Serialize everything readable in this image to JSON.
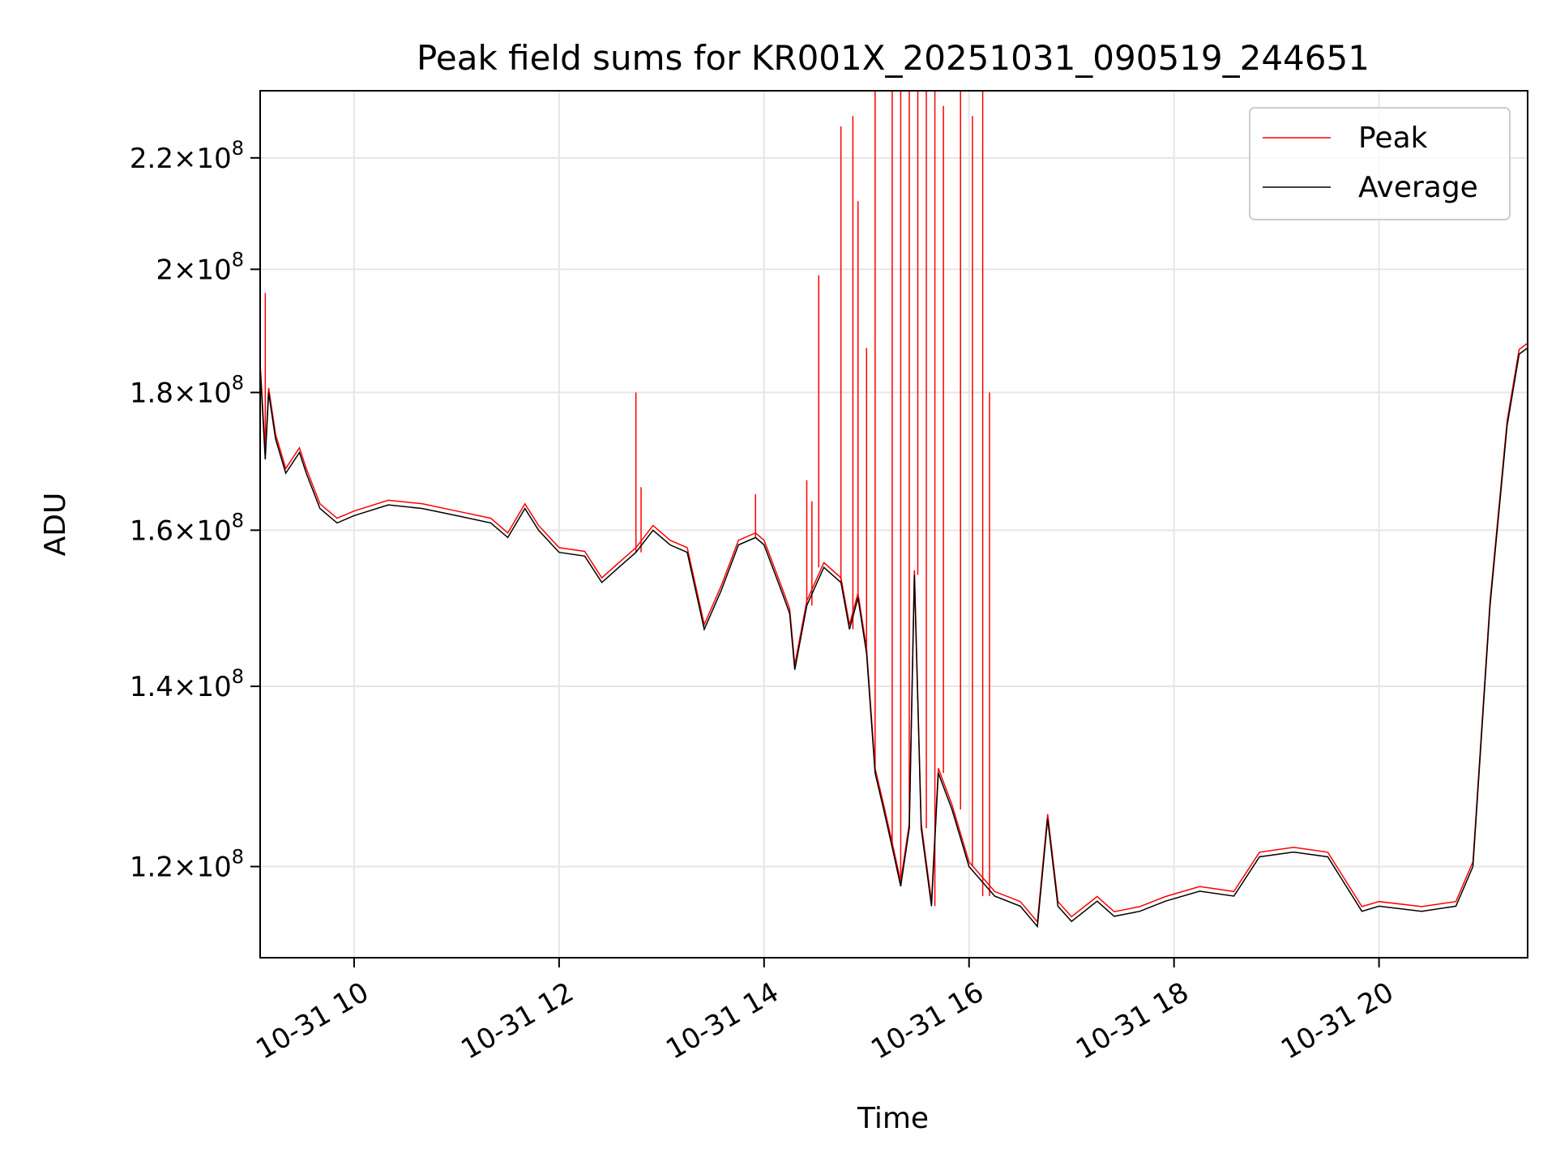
{
  "chart_data": {
    "type": "line",
    "title": "Peak field sums for KR001X_20251031_090519_244651",
    "xlabel": "Time",
    "ylabel": "ADU",
    "xlim": [
      "2025-10-31 09:05",
      "2025-10-31 21:27"
    ],
    "ylim": [
      111000000,
      233000000
    ],
    "yscale": "log",
    "grid": true,
    "legend_position": "top-right",
    "x_ticks": [
      {
        "t": "2025-10-31 10:00",
        "label": "10-31 10"
      },
      {
        "t": "2025-10-31 12:00",
        "label": "10-31 12"
      },
      {
        "t": "2025-10-31 14:00",
        "label": "10-31 14"
      },
      {
        "t": "2025-10-31 16:00",
        "label": "10-31 16"
      },
      {
        "t": "2025-10-31 18:00",
        "label": "10-31 18"
      },
      {
        "t": "2025-10-31 20:00",
        "label": "10-31 20"
      }
    ],
    "y_ticks": [
      {
        "value": 120000000,
        "mant": "1.2",
        "exp": "8"
      },
      {
        "value": 140000000,
        "mant": "1.4",
        "exp": "8"
      },
      {
        "value": 160000000,
        "mant": "1.6",
        "exp": "8"
      },
      {
        "value": 180000000,
        "mant": "1.8",
        "exp": "8"
      },
      {
        "value": 200000000,
        "mant": "2",
        "exp": "8"
      },
      {
        "value": 220000000,
        "mant": "2.2",
        "exp": "8"
      }
    ],
    "series": [
      {
        "name": "Average",
        "color": "#000000",
        "points": [
          [
            "2025-10-31 09:05",
            184000000
          ],
          [
            "2025-10-31 09:08",
            170000000
          ],
          [
            "2025-10-31 09:10",
            180000000
          ],
          [
            "2025-10-31 09:14",
            173000000
          ],
          [
            "2025-10-31 09:20",
            168000000
          ],
          [
            "2025-10-31 09:28",
            171000000
          ],
          [
            "2025-10-31 09:32",
            168000000
          ],
          [
            "2025-10-31 09:40",
            163000000
          ],
          [
            "2025-10-31 09:50",
            161000000
          ],
          [
            "2025-10-31 10:00",
            162000000
          ],
          [
            "2025-10-31 10:20",
            163500000
          ],
          [
            "2025-10-31 10:40",
            163000000
          ],
          [
            "2025-10-31 11:00",
            162000000
          ],
          [
            "2025-10-31 11:20",
            161000000
          ],
          [
            "2025-10-31 11:30",
            159000000
          ],
          [
            "2025-10-31 11:40",
            163000000
          ],
          [
            "2025-10-31 11:48",
            160000000
          ],
          [
            "2025-10-31 12:00",
            157000000
          ],
          [
            "2025-10-31 12:15",
            156500000
          ],
          [
            "2025-10-31 12:25",
            153000000
          ],
          [
            "2025-10-31 12:35",
            155000000
          ],
          [
            "2025-10-31 12:45",
            157000000
          ],
          [
            "2025-10-31 12:55",
            160000000
          ],
          [
            "2025-10-31 13:05",
            158000000
          ],
          [
            "2025-10-31 13:15",
            157000000
          ],
          [
            "2025-10-31 13:25",
            147000000
          ],
          [
            "2025-10-31 13:35",
            152000000
          ],
          [
            "2025-10-31 13:45",
            158000000
          ],
          [
            "2025-10-31 13:55",
            159000000
          ],
          [
            "2025-10-31 14:00",
            158000000
          ],
          [
            "2025-10-31 14:10",
            152000000
          ],
          [
            "2025-10-31 14:15",
            149000000
          ],
          [
            "2025-10-31 14:18",
            142000000
          ],
          [
            "2025-10-31 14:25",
            150000000
          ],
          [
            "2025-10-31 14:35",
            155000000
          ],
          [
            "2025-10-31 14:45",
            153000000
          ],
          [
            "2025-10-31 14:50",
            147000000
          ],
          [
            "2025-10-31 14:55",
            151000000
          ],
          [
            "2025-10-31 15:00",
            144000000
          ],
          [
            "2025-10-31 15:05",
            130000000
          ],
          [
            "2025-10-31 15:10",
            126000000
          ],
          [
            "2025-10-31 15:15",
            122000000
          ],
          [
            "2025-10-31 15:20",
            118000000
          ],
          [
            "2025-10-31 15:25",
            124000000
          ],
          [
            "2025-10-31 15:28",
            154000000
          ],
          [
            "2025-10-31 15:32",
            124000000
          ],
          [
            "2025-10-31 15:38",
            116000000
          ],
          [
            "2025-10-31 15:42",
            130000000
          ],
          [
            "2025-10-31 15:50",
            126000000
          ],
          [
            "2025-10-31 16:00",
            120000000
          ],
          [
            "2025-10-31 16:15",
            117000000
          ],
          [
            "2025-10-31 16:30",
            116000000
          ],
          [
            "2025-10-31 16:40",
            114000000
          ],
          [
            "2025-10-31 16:46",
            125000000
          ],
          [
            "2025-10-31 16:52",
            116000000
          ],
          [
            "2025-10-31 17:00",
            114500000
          ],
          [
            "2025-10-31 17:15",
            116500000
          ],
          [
            "2025-10-31 17:25",
            115000000
          ],
          [
            "2025-10-31 17:40",
            115500000
          ],
          [
            "2025-10-31 17:55",
            116500000
          ],
          [
            "2025-10-31 18:15",
            117500000
          ],
          [
            "2025-10-31 18:35",
            117000000
          ],
          [
            "2025-10-31 18:50",
            121000000
          ],
          [
            "2025-10-31 19:10",
            121500000
          ],
          [
            "2025-10-31 19:30",
            121000000
          ],
          [
            "2025-10-31 19:50",
            115500000
          ],
          [
            "2025-10-31 20:00",
            116000000
          ],
          [
            "2025-10-31 20:25",
            115500000
          ],
          [
            "2025-10-31 20:45",
            116000000
          ],
          [
            "2025-10-31 20:55",
            120000000
          ],
          [
            "2025-10-31 21:05",
            150000000
          ],
          [
            "2025-10-31 21:15",
            175000000
          ],
          [
            "2025-10-31 21:22",
            186000000
          ],
          [
            "2025-10-31 21:27",
            187000000
          ]
        ]
      },
      {
        "name": "Peak",
        "color": "#ff0000",
        "spikes": [
          [
            "2025-10-31 09:08",
            196000000
          ],
          [
            "2025-10-31 12:45",
            180000000
          ],
          [
            "2025-10-31 12:48",
            166000000
          ],
          [
            "2025-10-31 13:55",
            165000000
          ],
          [
            "2025-10-31 14:25",
            167000000
          ],
          [
            "2025-10-31 14:28",
            164000000
          ],
          [
            "2025-10-31 14:32",
            199000000
          ],
          [
            "2025-10-31 14:45",
            226000000
          ],
          [
            "2025-10-31 14:52",
            228000000
          ],
          [
            "2025-10-31 14:55",
            212000000
          ],
          [
            "2025-10-31 15:00",
            187000000
          ],
          [
            "2025-10-31 15:05",
            233000000
          ],
          [
            "2025-10-31 15:15",
            233000000
          ],
          [
            "2025-10-31 15:20",
            233000000
          ],
          [
            "2025-10-31 15:25",
            233000000
          ],
          [
            "2025-10-31 15:30",
            233000000
          ],
          [
            "2025-10-31 15:35",
            233000000
          ],
          [
            "2025-10-31 15:40",
            233000000
          ],
          [
            "2025-10-31 15:45",
            230000000
          ],
          [
            "2025-10-31 15:55",
            233000000
          ],
          [
            "2025-10-31 16:02",
            228000000
          ],
          [
            "2025-10-31 16:08",
            233000000
          ],
          [
            "2025-10-31 16:12",
            180000000
          ]
        ]
      }
    ]
  }
}
